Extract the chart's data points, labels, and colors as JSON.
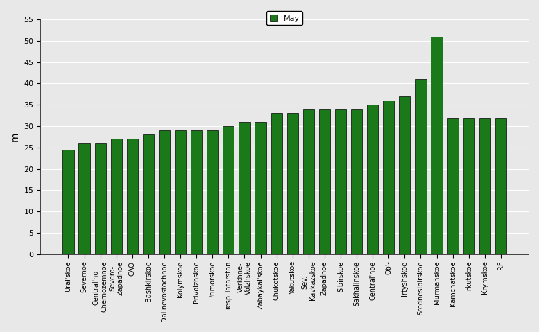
{
  "categories": [
    "Ural'skoe",
    "Severnoe",
    "Central'no-\nChernozemnoe",
    "Severo-\nZapadnoe",
    "CAO",
    "Bashkirskoe",
    "Dal'nevostochnoe",
    "Kolymskoe",
    "Privolzhskoe",
    "Primorskoe",
    "resp.Tatarstan",
    "Verkhne-\nVolzhskoe",
    "Zabaykal'skoe",
    "Chukotskoe",
    "Yakutskoe",
    "Sev.-\nKavkazskoe",
    "Zapadnoe",
    "Sibirskoe",
    "Sakhalinskoe",
    "Central'noe",
    "Ob'-",
    "Irtyshskoe",
    "Srednesibirskoe",
    "Murmanskoe",
    "Kamchatskoe",
    "Irkutskoe",
    "Krymskoe",
    "RF"
  ],
  "values": [
    24.5,
    26.0,
    26.0,
    27.0,
    27.0,
    28.0,
    29.0,
    29.0,
    29.0,
    29.0,
    30.0,
    31.0,
    31.0,
    33.0,
    33.0,
    34.0,
    34.0,
    34.0,
    34.0,
    35.0,
    36.0,
    37.0,
    41.0,
    51.0,
    32.0,
    32.0,
    32.0,
    32.0
  ],
  "bar_color": "#1a7a1a",
  "bar_edge_color": "#000000",
  "ylabel": "m",
  "ylim": [
    0,
    55
  ],
  "yticks": [
    0,
    5,
    10,
    15,
    20,
    25,
    30,
    35,
    40,
    45,
    50,
    55
  ],
  "legend_label": "May",
  "legend_color": "#1a7a1a",
  "bg_color": "#e8e8e8",
  "grid_color": "#ffffff",
  "figsize": [
    7.77,
    4.79
  ],
  "dpi": 100
}
